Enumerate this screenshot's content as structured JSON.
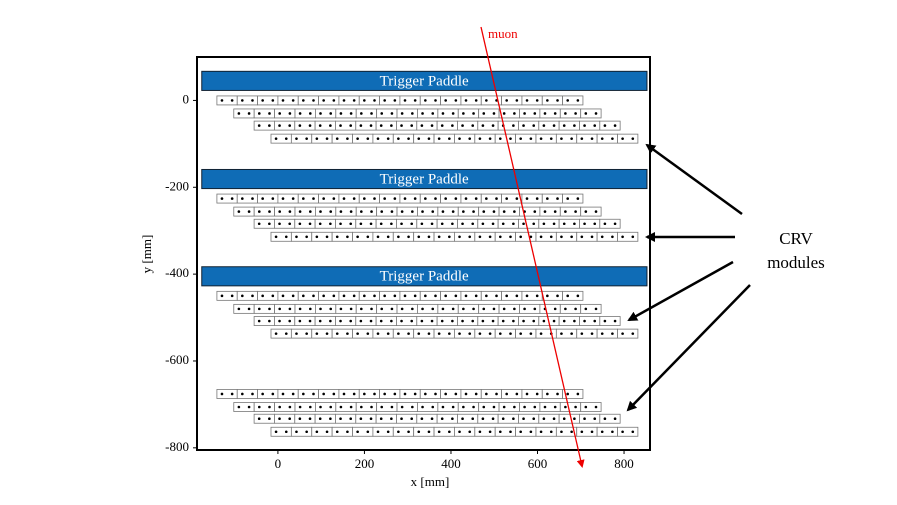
{
  "axes": {
    "xlabel": "x [mm]",
    "ylabel": "y [mm]",
    "xlim": [
      -187,
      860
    ],
    "ylim": [
      -805,
      100
    ],
    "xticks": [
      0,
      200,
      400,
      600,
      800
    ],
    "yticks": [
      0,
      -200,
      -400,
      -600,
      -800
    ]
  },
  "paddles": [
    "Trigger Paddle",
    "Trigger Paddle",
    "Trigger Paddle"
  ],
  "muon_label": "muon",
  "annotation": {
    "lines": [
      "CRV",
      "modules"
    ]
  }
}
